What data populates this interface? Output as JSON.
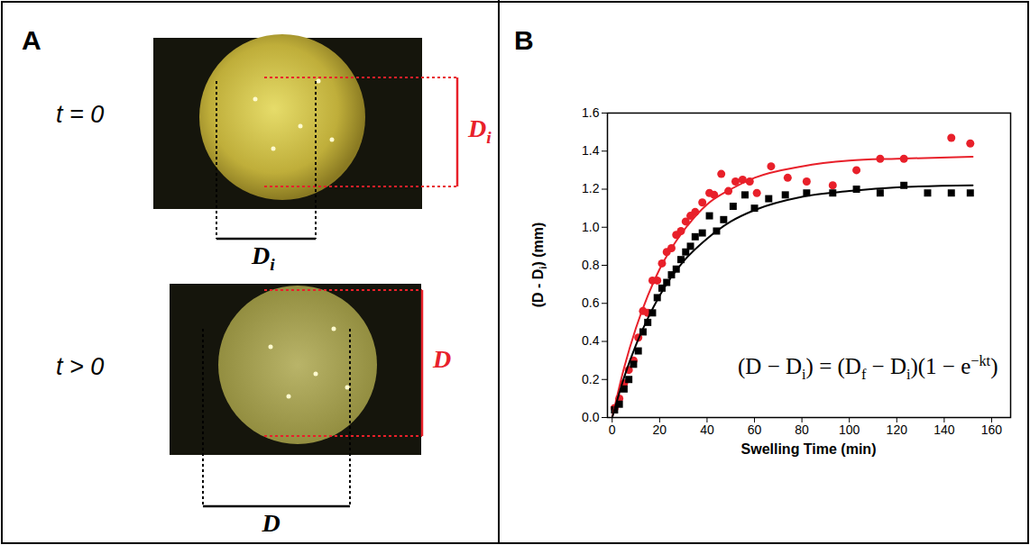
{
  "panel_a": {
    "letter": "A",
    "images": [
      {
        "time_label": "t = 0",
        "height_label": [
          {
            "text": "D"
          },
          {
            "text": "i",
            "sub": true
          }
        ],
        "width_label": [
          {
            "text": "D"
          },
          {
            "text": "i",
            "sub": true
          }
        ]
      },
      {
        "time_label": "t > 0",
        "height_label": [
          {
            "text": "D"
          }
        ],
        "width_label": [
          {
            "text": "D"
          }
        ]
      }
    ]
  },
  "chart_data": {
    "panel_letter": "B",
    "type": "scatter",
    "x_label": "Swelling Time (min)",
    "y_label": [
      {
        "text": "(D - D"
      },
      {
        "text": "i",
        "sub": true
      },
      {
        "text": ") (mm)"
      }
    ],
    "annotation": [
      {
        "text": "(D − D"
      },
      {
        "text": "i",
        "sub": true
      },
      {
        "text": ") = (D"
      },
      {
        "text": "f",
        "sub": true
      },
      {
        "text": " − D"
      },
      {
        "text": "i",
        "sub": true
      },
      {
        "text": ")(1 − e"
      },
      {
        "text": "−kt",
        "sup": true
      },
      {
        "text": ")"
      }
    ],
    "xlim": [
      -2,
      168
    ],
    "xticks": [
      0,
      20,
      40,
      60,
      80,
      100,
      120,
      140,
      160
    ],
    "ylim": [
      0,
      1.6
    ],
    "yticks": [
      {
        "value": 0,
        "label": "0.0"
      },
      0.2,
      0.4,
      0.6,
      0.8,
      {
        "value": 1,
        "label": "1.0"
      },
      1.2,
      1.4,
      1.6
    ],
    "series": [
      {
        "color": "#e8202a",
        "marker": "circle",
        "x": [
          1,
          3,
          5,
          7,
          9,
          11,
          13,
          15,
          17,
          19,
          21,
          23,
          25,
          27,
          29,
          31,
          33,
          35,
          38,
          41,
          43,
          46,
          49,
          52,
          55,
          58,
          61,
          67,
          74,
          82,
          93,
          103,
          113,
          123,
          143,
          151
        ],
        "values": [
          0.05,
          0.1,
          0.18,
          0.25,
          0.3,
          0.42,
          0.56,
          0.55,
          0.72,
          0.72,
          0.81,
          0.87,
          0.89,
          0.96,
          0.98,
          1.03,
          1.06,
          1.08,
          1.13,
          1.18,
          1.17,
          1.28,
          1.19,
          1.24,
          1.25,
          1.24,
          1.18,
          1.32,
          1.26,
          1.24,
          1.22,
          1.3,
          1.36,
          1.36,
          1.47,
          1.44
        ]
      },
      {
        "color": "#000000",
        "marker": "square",
        "x": [
          1,
          3,
          5,
          7,
          9,
          11,
          13,
          15,
          17,
          19,
          21,
          23,
          25,
          27,
          29,
          31,
          33,
          35,
          38,
          41,
          44,
          47,
          51,
          56,
          60,
          66,
          73,
          82,
          93,
          103,
          113,
          123,
          133,
          143,
          151
        ],
        "values": [
          0.04,
          0.07,
          0.15,
          0.2,
          0.28,
          0.35,
          0.45,
          0.5,
          0.55,
          0.63,
          0.68,
          0.71,
          0.75,
          0.78,
          0.83,
          0.87,
          0.9,
          0.95,
          0.97,
          1.06,
          0.98,
          1.04,
          1.11,
          1.17,
          1.1,
          1.15,
          1.17,
          1.18,
          1.18,
          1.2,
          1.18,
          1.22,
          1.18,
          1.18,
          1.18
        ]
      },
      {
        "type": "line",
        "color": "#e8202a",
        "x": [
          0,
          5,
          10,
          15,
          20,
          25,
          30,
          40,
          50,
          60,
          80,
          100,
          120,
          152
        ],
        "values": [
          0,
          0.26,
          0.47,
          0.64,
          0.78,
          0.89,
          0.98,
          1.12,
          1.2,
          1.26,
          1.32,
          1.35,
          1.36,
          1.37
        ]
      },
      {
        "type": "line",
        "color": "#000000",
        "x": [
          0,
          5,
          10,
          15,
          20,
          25,
          30,
          40,
          50,
          60,
          80,
          100,
          120,
          152
        ],
        "values": [
          0,
          0.21,
          0.38,
          0.52,
          0.64,
          0.74,
          0.82,
          0.94,
          1.03,
          1.09,
          1.16,
          1.19,
          1.21,
          1.22
        ]
      }
    ]
  }
}
